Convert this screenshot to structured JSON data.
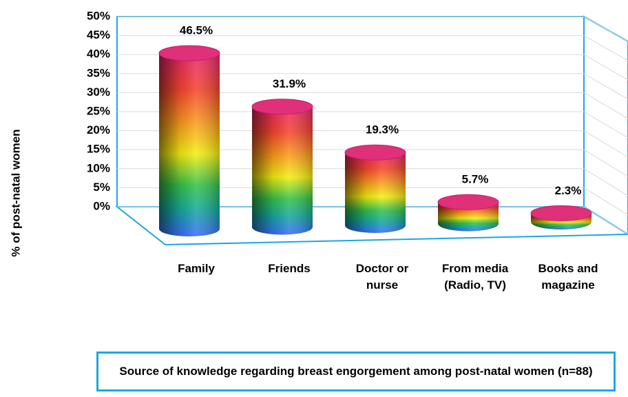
{
  "chart_data": {
    "type": "bar",
    "title": "Source of knowledge regarding breast engorgement among post-natal women (n=88)",
    "y_label": "% of post-natal women",
    "categories": [
      "Family",
      "Friends",
      "Doctor or nurse",
      "From media (Radio, TV)",
      "Books and magazine"
    ],
    "values": [
      46.5,
      31.9,
      19.3,
      5.7,
      2.3
    ],
    "value_labels": [
      "46.5%",
      "31.9%",
      "19.3%",
      "5.7%",
      "2.3%"
    ],
    "ylim": [
      0,
      50
    ],
    "yticks": [
      {
        "value": 0,
        "label": "0%"
      },
      {
        "value": 5,
        "label": "5%"
      },
      {
        "value": 10,
        "label": "10%"
      },
      {
        "value": 15,
        "label": "15%"
      },
      {
        "value": 20,
        "label": "20%"
      },
      {
        "value": 25,
        "label": "25%"
      },
      {
        "value": 30,
        "label": "30%"
      },
      {
        "value": 35,
        "label": "35%"
      },
      {
        "value": 40,
        "label": "40%"
      },
      {
        "value": 45,
        "label": "45%"
      },
      {
        "value": 50,
        "label": "50%"
      }
    ],
    "grid": true
  }
}
